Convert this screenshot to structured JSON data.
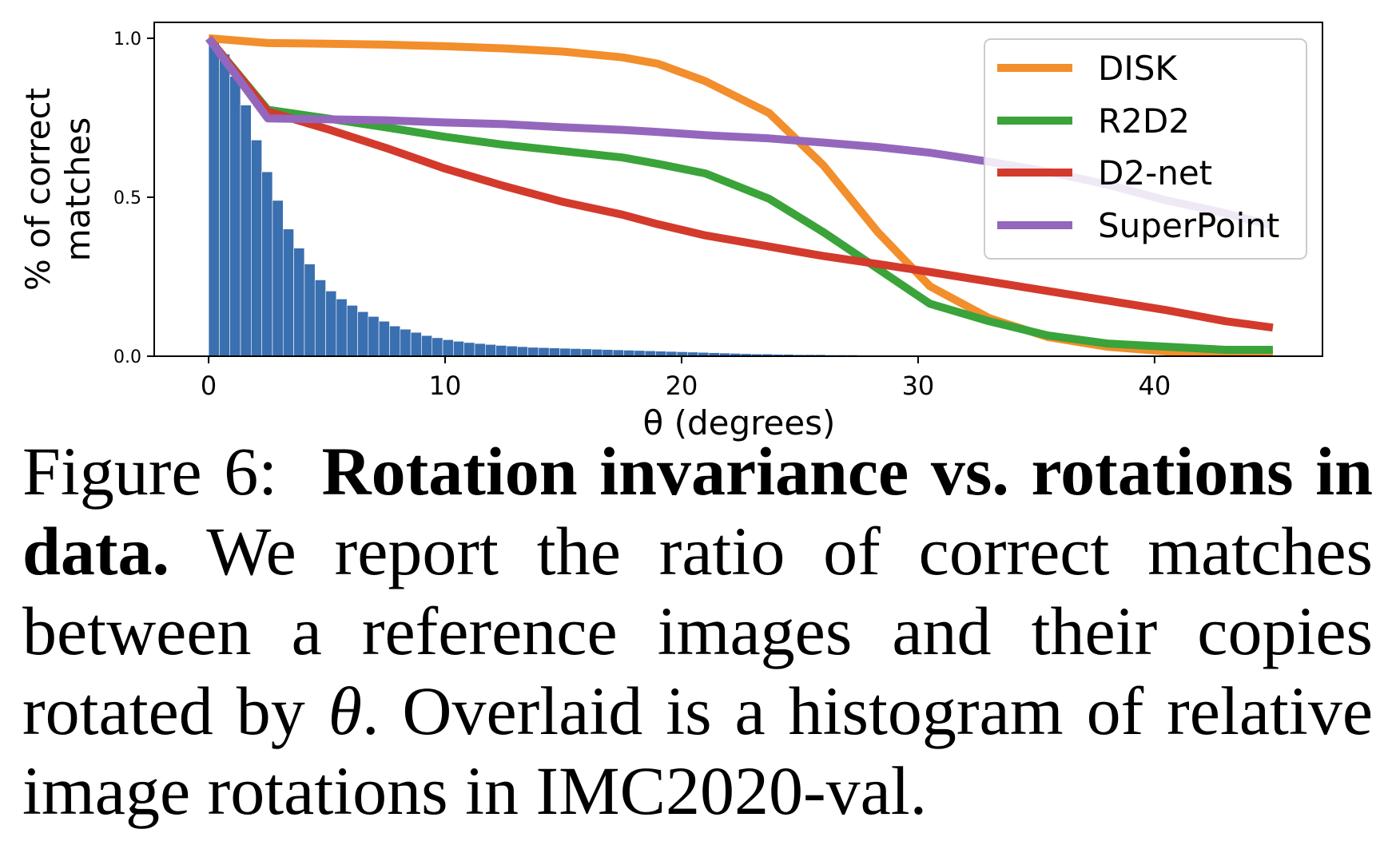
{
  "chart_data": {
    "type": "line",
    "xlabel": "θ (degrees)",
    "ylabel_lines": [
      "% of correct",
      "matches"
    ],
    "xlim": [
      -2.3,
      47.1
    ],
    "ylim": [
      0,
      1.05
    ],
    "xticks": [
      0,
      10,
      20,
      30,
      40
    ],
    "yticks": [
      0.0,
      0.5,
      1.0
    ],
    "xtick_labels": [
      "0",
      "10",
      "20",
      "30",
      "40"
    ],
    "ytick_labels": [
      "0.0",
      "0.5",
      "1.0"
    ],
    "grid": false,
    "legend_position": "top-right",
    "histogram": {
      "bin_width": 0.45,
      "color": "#3a6fb0",
      "values": [
        1.0,
        0.95,
        0.88,
        0.79,
        0.68,
        0.58,
        0.49,
        0.4,
        0.34,
        0.29,
        0.24,
        0.205,
        0.18,
        0.16,
        0.14,
        0.125,
        0.11,
        0.095,
        0.085,
        0.075,
        0.065,
        0.058,
        0.052,
        0.047,
        0.043,
        0.04,
        0.037,
        0.034,
        0.032,
        0.03,
        0.028,
        0.027,
        0.026,
        0.025,
        0.024,
        0.023,
        0.022,
        0.021,
        0.02,
        0.019,
        0.018,
        0.017,
        0.016,
        0.015,
        0.014,
        0.013,
        0.012,
        0.011,
        0.01,
        0.009,
        0.008,
        0.007,
        0.007,
        0.006,
        0.006,
        0.005,
        0.005,
        0.005,
        0.004,
        0.004,
        0.004,
        0.003,
        0.003,
        0.003,
        0.003,
        0.002,
        0.002,
        0.002,
        0.002,
        0.002
      ]
    },
    "series": [
      {
        "name": "DISK",
        "color": "#f28e2b",
        "x": [
          0,
          2.5,
          5,
          7.5,
          10,
          12.5,
          15,
          17.5,
          19,
          21,
          23.7,
          26,
          28.3,
          30.5,
          33,
          35.5,
          38,
          40.5,
          43,
          45
        ],
        "y": [
          1.0,
          0.985,
          0.983,
          0.98,
          0.975,
          0.968,
          0.958,
          0.94,
          0.92,
          0.865,
          0.765,
          0.6,
          0.39,
          0.22,
          0.12,
          0.06,
          0.03,
          0.015,
          0.01,
          0.01
        ]
      },
      {
        "name": "R2D2",
        "color": "#3aa33a",
        "x": [
          0,
          2.5,
          5,
          7.5,
          10,
          12.5,
          15,
          17.5,
          19,
          21,
          23.7,
          26,
          28.3,
          30.5,
          33,
          35.5,
          38,
          40.5,
          43,
          45
        ],
        "y": [
          1.0,
          0.775,
          0.748,
          0.72,
          0.69,
          0.665,
          0.645,
          0.625,
          0.605,
          0.575,
          0.495,
          0.39,
          0.275,
          0.165,
          0.11,
          0.065,
          0.04,
          0.03,
          0.02,
          0.02
        ]
      },
      {
        "name": "D2-net",
        "color": "#d33a2c",
        "x": [
          0,
          2.5,
          5,
          7.5,
          10,
          12.5,
          15,
          17.5,
          19,
          21,
          23.7,
          26,
          28.3,
          30.5,
          33,
          35.5,
          38,
          40.5,
          43,
          45
        ],
        "y": [
          1.0,
          0.77,
          0.715,
          0.655,
          0.59,
          0.535,
          0.485,
          0.445,
          0.415,
          0.38,
          0.345,
          0.315,
          0.29,
          0.265,
          0.235,
          0.205,
          0.175,
          0.145,
          0.11,
          0.09
        ]
      },
      {
        "name": "SuperPoint",
        "color": "#9467bd",
        "x": [
          0,
          2.5,
          5,
          7.5,
          10,
          12.5,
          15,
          17.5,
          19,
          21,
          23.7,
          26,
          28.3,
          30.5,
          33,
          35.5,
          38,
          40.5,
          43,
          45
        ],
        "y": [
          1.0,
          0.748,
          0.745,
          0.742,
          0.735,
          0.73,
          0.72,
          0.712,
          0.705,
          0.695,
          0.685,
          0.672,
          0.658,
          0.64,
          0.612,
          0.58,
          0.54,
          0.49,
          0.45,
          0.41
        ]
      }
    ]
  },
  "caption": {
    "figure_label": "Figure 6:",
    "title_bold": "Rotation invariance vs. rotations in data.",
    "text_before_math": "We report the ratio of correct matches between a reference images and their copies rotated by",
    "math_symbol": "θ",
    "text_after_math": ". Overlaid is a histogram of relative image rotations in IMC2020-val."
  }
}
